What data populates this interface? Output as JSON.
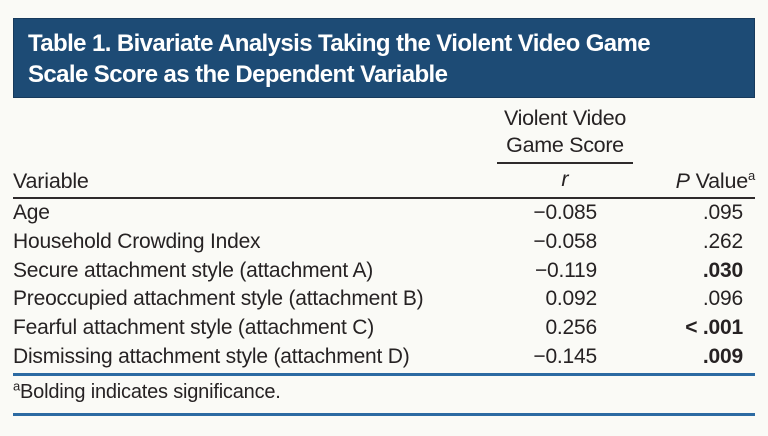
{
  "table": {
    "title": "Table 1. Bivariate Analysis Taking the Violent Video Game Scale Score as the Dependent Variable",
    "title_line1": "Table 1. Bivariate Analysis Taking the Violent Video Game",
    "title_line2": "Scale Score as the Dependent Variable",
    "columns": {
      "group_header_line1": "Violent Video",
      "group_header_line2": "Game Score",
      "variable_label": "Variable",
      "r_label": "r",
      "p_label_italic": "P",
      "p_label_rest": " Value",
      "p_label_superscript": "a"
    },
    "rows": [
      {
        "variable": "Age",
        "r": "−0.085",
        "p": ".095",
        "p_bold": false
      },
      {
        "variable": "Household Crowding Index",
        "r": "−0.058",
        "p": ".262",
        "p_bold": false
      },
      {
        "variable": "Secure attachment style (attachment A)",
        "r": "−0.119",
        "p": ".030",
        "p_bold": true
      },
      {
        "variable": "Preoccupied attachment style (attachment B)",
        "r": "0.092",
        "p": ".096",
        "p_bold": false
      },
      {
        "variable": "Fearful attachment style (attachment C)",
        "r": "0.256",
        "p": "< .001",
        "p_bold": true
      },
      {
        "variable": "Dismissing attachment style (attachment D)",
        "r": "−0.145",
        "p": ".009",
        "p_bold": true
      }
    ],
    "footnote": {
      "superscript": "a",
      "text": "Bolding indicates significance."
    },
    "colors": {
      "title_band_bg": "#1d4b75",
      "title_text": "#ffffff",
      "body_text": "#262223",
      "dark_rule": "#2e2a2b",
      "blue_rule": "#2c6aa2",
      "page_bg": "#fafaf6"
    }
  }
}
